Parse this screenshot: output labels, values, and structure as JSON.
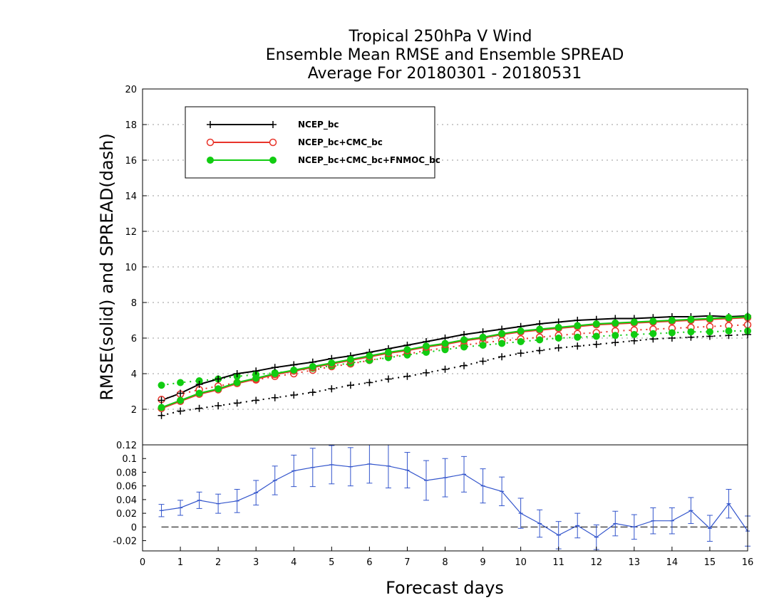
{
  "title": {
    "line1": "Tropical 250hPa V Wind",
    "line2": "Ensemble Mean RMSE and Ensemble SPREAD",
    "line3": "Average For 20180301 - 20180531"
  },
  "colors": {
    "ncep": "#000000",
    "cmc": "#e8342a",
    "fnmoc": "#11cc11",
    "diff": "#3355cc",
    "grid": "#999999"
  },
  "chart_data": [
    {
      "type": "line",
      "xlabel": "Forecast days",
      "ylabel": "RMSE(solid) and SPREAD(dash)",
      "xlim": [
        0,
        16
      ],
      "ylim": [
        0,
        20
      ],
      "yticks": [
        "2",
        "4",
        "6",
        "8",
        "10",
        "12",
        "14",
        "16",
        "18",
        "20"
      ],
      "grid": true,
      "legend_position": "top-left",
      "x": [
        0.5,
        1,
        1.5,
        2,
        2.5,
        3,
        3.5,
        4,
        4.5,
        5,
        5.5,
        6,
        6.5,
        7,
        7.5,
        8,
        8.5,
        9,
        9.5,
        10,
        10.5,
        11,
        11.5,
        12,
        12.5,
        13,
        13.5,
        14,
        14.5,
        15,
        15.5,
        16
      ],
      "series": [
        {
          "name": "NCEP_bc",
          "style": "solid",
          "marker": "plus",
          "color": "#000000",
          "values": [
            2.5,
            2.9,
            3.4,
            3.7,
            4.0,
            4.15,
            4.35,
            4.5,
            4.65,
            4.85,
            5.0,
            5.2,
            5.4,
            5.6,
            5.8,
            6.0,
            6.2,
            6.35,
            6.5,
            6.65,
            6.8,
            6.9,
            7.0,
            7.05,
            7.1,
            7.1,
            7.15,
            7.2,
            7.2,
            7.25,
            7.2,
            7.25
          ]
        },
        {
          "name": "NCEP_bc+CMC_bc",
          "style": "solid",
          "marker": "open-circle",
          "color": "#e8342a",
          "values": [
            2.05,
            2.45,
            2.85,
            3.1,
            3.45,
            3.7,
            3.95,
            4.15,
            4.35,
            4.55,
            4.75,
            4.95,
            5.15,
            5.3,
            5.5,
            5.65,
            5.85,
            6.0,
            6.2,
            6.35,
            6.45,
            6.55,
            6.65,
            6.75,
            6.8,
            6.85,
            6.9,
            6.95,
            7.0,
            7.05,
            7.1,
            7.15
          ]
        },
        {
          "name": "NCEP_bc+CMC_bc+FNMOC_bc",
          "style": "solid",
          "marker": "filled-circle",
          "color": "#11cc11",
          "values": [
            2.1,
            2.5,
            2.9,
            3.15,
            3.5,
            3.75,
            4.0,
            4.2,
            4.4,
            4.6,
            4.8,
            5.0,
            5.2,
            5.35,
            5.55,
            5.7,
            5.9,
            6.05,
            6.25,
            6.4,
            6.5,
            6.6,
            6.7,
            6.8,
            6.85,
            6.9,
            6.95,
            7.0,
            7.05,
            7.1,
            7.15,
            7.2
          ]
        },
        {
          "name": "",
          "style": "dash",
          "marker": "plus",
          "color": "#000000",
          "values": [
            1.65,
            1.9,
            2.05,
            2.2,
            2.35,
            2.5,
            2.65,
            2.8,
            2.95,
            3.15,
            3.35,
            3.5,
            3.7,
            3.85,
            4.05,
            4.25,
            4.45,
            4.7,
            4.95,
            5.15,
            5.3,
            5.45,
            5.55,
            5.65,
            5.75,
            5.85,
            5.95,
            6.0,
            6.05,
            6.1,
            6.15,
            6.2
          ]
        },
        {
          "name": "",
          "style": "dash",
          "marker": "open-circle",
          "color": "#e8342a",
          "values": [
            2.55,
            2.85,
            3.1,
            3.3,
            3.5,
            3.65,
            3.85,
            4.0,
            4.2,
            4.4,
            4.55,
            4.75,
            4.95,
            5.1,
            5.3,
            5.45,
            5.6,
            5.75,
            5.85,
            5.95,
            6.05,
            6.15,
            6.25,
            6.3,
            6.4,
            6.45,
            6.5,
            6.55,
            6.6,
            6.65,
            6.7,
            6.75
          ]
        },
        {
          "name": "",
          "style": "dash",
          "marker": "filled-circle",
          "color": "#11cc11",
          "values": [
            3.35,
            3.5,
            3.6,
            3.7,
            3.85,
            3.95,
            4.05,
            4.15,
            4.3,
            4.45,
            4.6,
            4.75,
            4.9,
            5.05,
            5.2,
            5.35,
            5.5,
            5.6,
            5.7,
            5.8,
            5.9,
            6.0,
            6.05,
            6.1,
            6.15,
            6.2,
            6.25,
            6.3,
            6.35,
            6.35,
            6.4,
            6.4
          ]
        }
      ]
    },
    {
      "type": "line",
      "xlim": [
        0,
        16
      ],
      "ylim": [
        -0.035,
        0.12
      ],
      "yticks": [
        "-0.02",
        "0",
        "0.02",
        "0.04",
        "0.06",
        "0.08",
        "0.1",
        "0.12"
      ],
      "xticks": [
        "0",
        "1",
        "2",
        "3",
        "4",
        "5",
        "6",
        "7",
        "8",
        "9",
        "10",
        "11",
        "12",
        "13",
        "14",
        "15",
        "16"
      ],
      "zero_line": "dashed",
      "x": [
        0.5,
        1,
        1.5,
        2,
        2.5,
        3,
        3.5,
        4,
        4.5,
        5,
        5.5,
        6,
        6.5,
        7,
        7.5,
        8,
        8.5,
        9,
        9.5,
        10,
        10.5,
        11,
        11.5,
        12,
        12.5,
        13,
        13.5,
        14,
        14.5,
        15,
        15.5,
        16
      ],
      "series": [
        {
          "name": "",
          "color": "#3355cc",
          "error_bars": true,
          "values": [
            0.024,
            0.028,
            0.039,
            0.034,
            0.038,
            0.05,
            0.068,
            0.082,
            0.087,
            0.091,
            0.088,
            0.092,
            0.089,
            0.083,
            0.068,
            0.072,
            0.077,
            0.06,
            0.052,
            0.02,
            0.005,
            -0.012,
            0.002,
            -0.015,
            0.005,
            0.0,
            0.009,
            0.009,
            0.024,
            -0.002,
            0.034,
            -0.006
          ],
          "errors": [
            0.009,
            0.011,
            0.012,
            0.014,
            0.017,
            0.018,
            0.021,
            0.023,
            0.028,
            0.028,
            0.028,
            0.028,
            0.032,
            0.026,
            0.029,
            0.028,
            0.026,
            0.025,
            0.021,
            0.022,
            0.02,
            0.02,
            0.018,
            0.018,
            0.018,
            0.018,
            0.019,
            0.019,
            0.019,
            0.019,
            0.021,
            0.022
          ]
        }
      ]
    }
  ]
}
